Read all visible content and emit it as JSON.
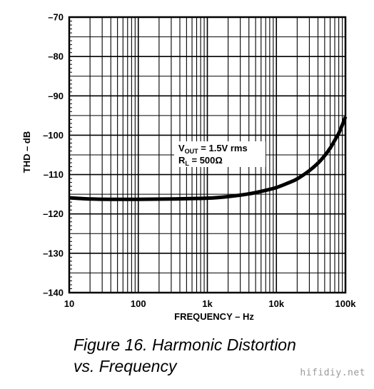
{
  "chart_data": {
    "type": "line",
    "title": "",
    "xlabel": "FREQUENCY – Hz",
    "ylabel": "THD – dB",
    "x_scale": "log",
    "xlim": [
      10,
      100000
    ],
    "ylim": [
      -140,
      -70
    ],
    "x_ticks": [
      {
        "value": 10,
        "label": "10"
      },
      {
        "value": 100,
        "label": "100"
      },
      {
        "value": 1000,
        "label": "1k"
      },
      {
        "value": 10000,
        "label": "10k"
      },
      {
        "value": 100000,
        "label": "100k"
      }
    ],
    "y_ticks": [
      {
        "value": -70,
        "label": "–70"
      },
      {
        "value": -80,
        "label": "–80"
      },
      {
        "value": -90,
        "label": "–90"
      },
      {
        "value": -100,
        "label": "–100"
      },
      {
        "value": -110,
        "label": "–110"
      },
      {
        "value": -120,
        "label": "–120"
      },
      {
        "value": -130,
        "label": "–130"
      },
      {
        "value": -140,
        "label": "–140"
      }
    ],
    "grid": true,
    "series": [
      {
        "name": "",
        "color": "#000000",
        "x": [
          10,
          20,
          40,
          100,
          300,
          1000,
          2000,
          4000,
          7000,
          10000,
          15000,
          20000,
          30000,
          40000,
          50000,
          60000,
          70000,
          80000,
          90000,
          100000
        ],
        "y": [
          -115.9,
          -116.2,
          -116.3,
          -116.3,
          -116.2,
          -116.0,
          -115.6,
          -114.9,
          -114.0,
          -113.3,
          -112.1,
          -111.1,
          -109.0,
          -107.1,
          -105.2,
          -103.3,
          -101.3,
          -99.5,
          -97.4,
          -95.3
        ]
      }
    ],
    "annotation": {
      "vout_main": "V",
      "vout_sub": "OUT",
      "vout_value": " = 1.5V rms",
      "rl_main": "R",
      "rl_sub": "L",
      "rl_value": " = 500Ω"
    }
  },
  "caption": {
    "line1": "Figure 16.  Harmonic Distortion",
    "line2": "vs. Frequency"
  },
  "watermark": "hifidiy.net"
}
